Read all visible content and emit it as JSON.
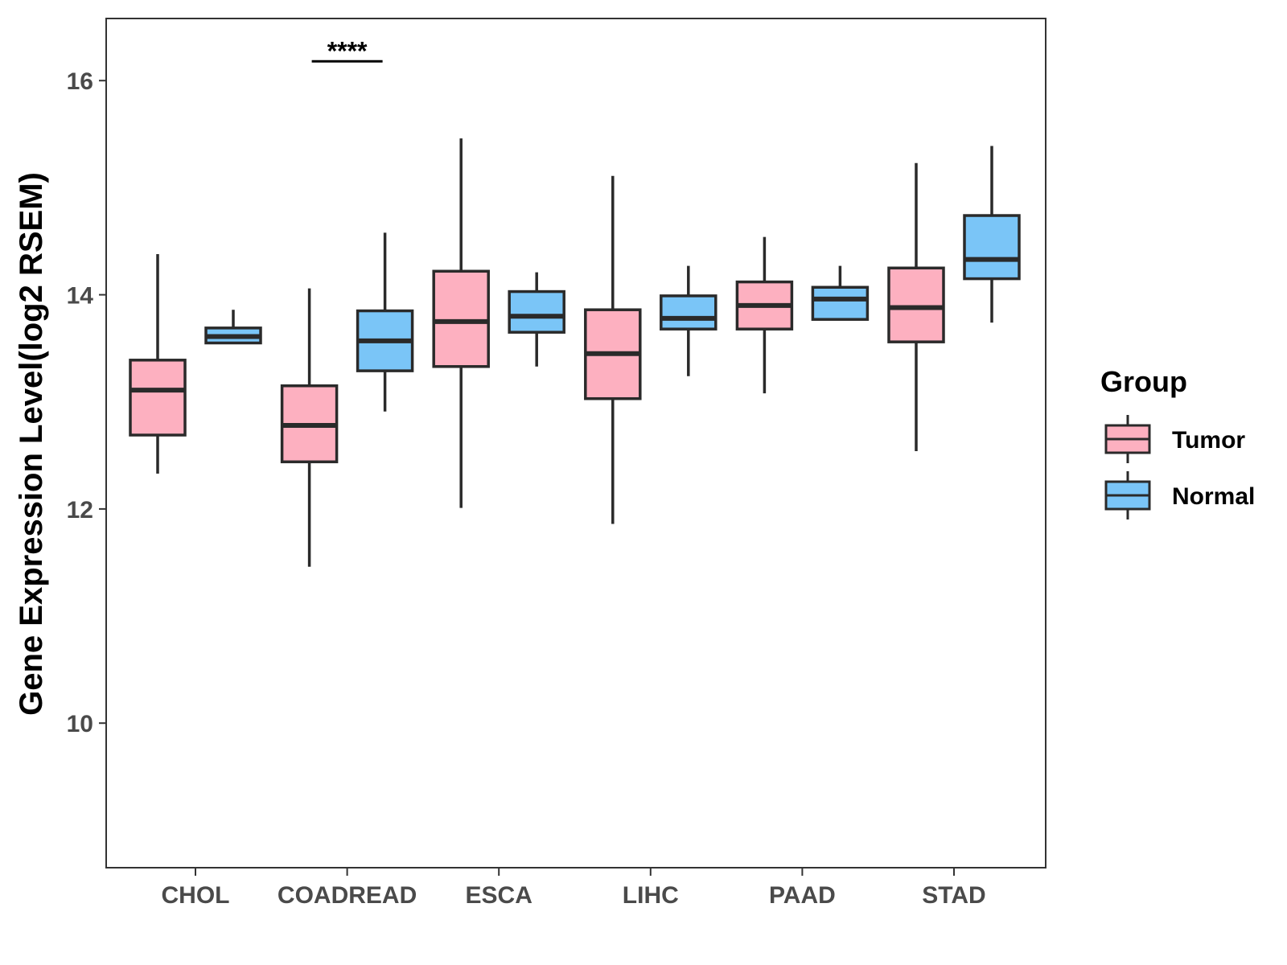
{
  "chart_data": {
    "type": "boxplot",
    "ylabel": "Gene Expression Level(log2 RSEM)",
    "xlabel": "",
    "ylim": [
      8.65,
      16.58
    ],
    "yticks": [
      10,
      12,
      14,
      16
    ],
    "grid": false,
    "legend_position": "right",
    "categories": [
      "CHOL",
      "COADREAD",
      "ESCA",
      "LIHC",
      "PAAD",
      "STAD"
    ],
    "legend": {
      "title": "Group",
      "entries": [
        {
          "name": "Tumor",
          "color": "#FDB0C0"
        },
        {
          "name": "Normal",
          "color": "#7AC5F7"
        }
      ]
    },
    "series": [
      {
        "name": "Tumor",
        "color": "#FDB0C0",
        "boxes": [
          {
            "min": 12.33,
            "q1": 12.69,
            "median": 13.11,
            "q3": 13.39,
            "max": 14.38
          },
          {
            "min": 11.46,
            "q1": 12.44,
            "median": 12.78,
            "q3": 13.15,
            "max": 14.06
          },
          {
            "min": 12.01,
            "q1": 13.33,
            "median": 13.75,
            "q3": 14.22,
            "max": 15.46
          },
          {
            "min": 11.86,
            "q1": 13.03,
            "median": 13.45,
            "q3": 13.86,
            "max": 15.11
          },
          {
            "min": 13.08,
            "q1": 13.68,
            "median": 13.9,
            "q3": 14.12,
            "max": 14.54
          },
          {
            "min": 12.54,
            "q1": 13.56,
            "median": 13.88,
            "q3": 14.25,
            "max": 15.23
          }
        ]
      },
      {
        "name": "Normal",
        "color": "#7AC5F7",
        "boxes": [
          {
            "min": 13.55,
            "q1": 13.55,
            "median": 13.61,
            "q3": 13.69,
            "max": 13.86
          },
          {
            "min": 12.91,
            "q1": 13.29,
            "median": 13.57,
            "q3": 13.85,
            "max": 14.58
          },
          {
            "min": 13.33,
            "q1": 13.65,
            "median": 13.8,
            "q3": 14.03,
            "max": 14.21
          },
          {
            "min": 13.24,
            "q1": 13.68,
            "median": 13.78,
            "q3": 13.99,
            "max": 14.27
          },
          {
            "min": 13.77,
            "q1": 13.77,
            "median": 13.96,
            "q3": 14.07,
            "max": 14.27
          },
          {
            "min": 13.74,
            "q1": 14.15,
            "median": 14.33,
            "q3": 14.74,
            "max": 15.39
          }
        ]
      }
    ],
    "annotations": [
      {
        "category": "COADREAD",
        "text": "****",
        "y": 16.18
      }
    ]
  }
}
